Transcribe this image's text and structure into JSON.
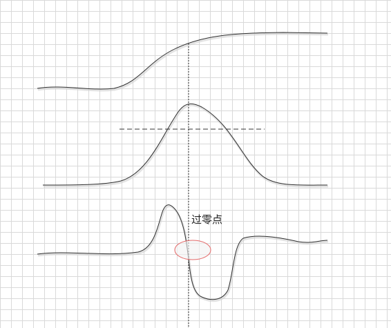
{
  "annotation": {
    "zero_crossing_label": "过零点"
  },
  "colors": {
    "background": "#ffffff",
    "grid": "#d9d9d9",
    "curve": "#2e2e2e",
    "highlight_stroke": "#e46a6a",
    "highlight_fill": "#f2f2f2"
  }
}
